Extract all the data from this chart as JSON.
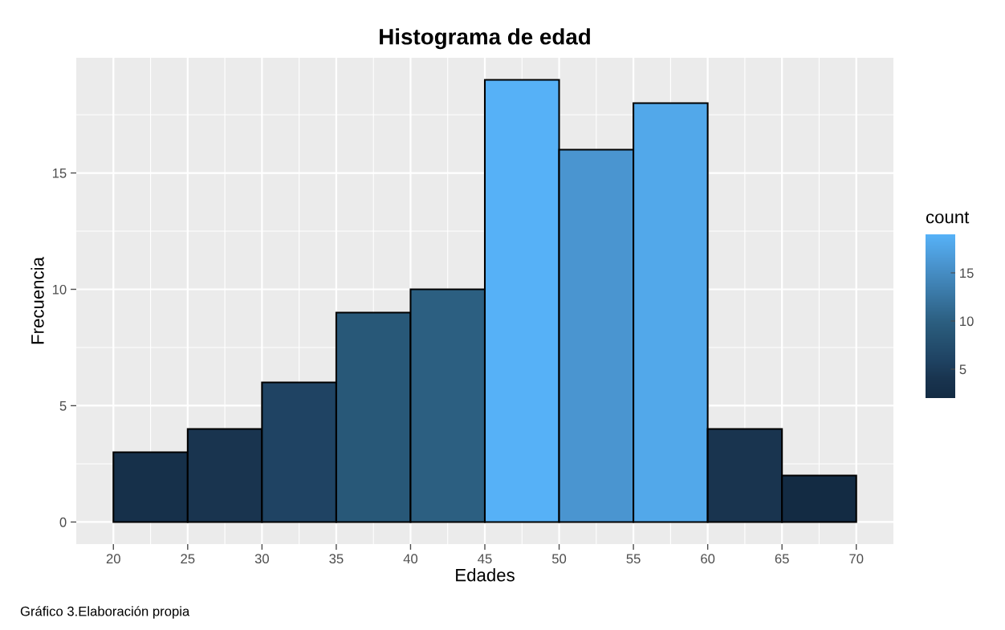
{
  "chart_data": {
    "type": "histogram",
    "title": "Histograma de edad",
    "xlabel": "Edades",
    "ylabel": "Frecuencia",
    "clabel": "count",
    "bins": [
      20,
      25,
      30,
      35,
      40,
      45,
      50,
      55,
      60,
      65,
      70
    ],
    "values": [
      3,
      4,
      6,
      9,
      10,
      19,
      16,
      18,
      4,
      2
    ],
    "colors": [
      "#16304A",
      "#19344F",
      "#1F4363",
      "#285878",
      "#2C5F81",
      "#56B1F7",
      "#4A95D0",
      "#52A8EA",
      "#19344F",
      "#132B43"
    ],
    "xlim": [
      17.5,
      72.5
    ],
    "xticks": [
      20,
      25,
      30,
      35,
      40,
      45,
      50,
      55,
      60,
      65,
      70
    ],
    "ylim": [
      -0.95,
      19.95
    ],
    "yticks": [
      0,
      5,
      10,
      15
    ],
    "clim": [
      2,
      19
    ],
    "cticks": [
      5,
      10,
      15
    ],
    "grid": true,
    "annotations": [
      "Gráfico 3.Elaboración propia"
    ]
  }
}
